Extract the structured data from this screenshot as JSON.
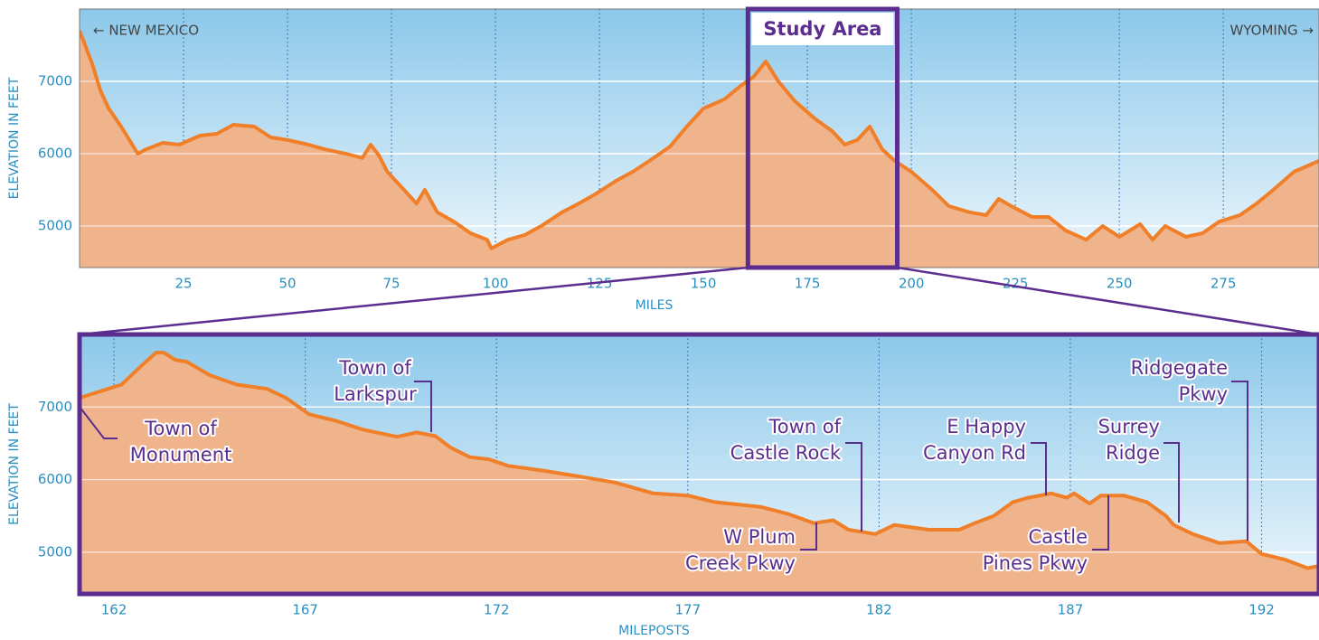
{
  "chart_data": [
    {
      "type": "area",
      "ylabel": "ELEVATION IN FEET",
      "xlabel": "MILES",
      "x": [
        0,
        3,
        5,
        7,
        10,
        14,
        16,
        20,
        24,
        29,
        33,
        37,
        42,
        46,
        50,
        55,
        59,
        64,
        68,
        70,
        72,
        74,
        78,
        81,
        83,
        86,
        90,
        94,
        98,
        99,
        103,
        107,
        111,
        116,
        120,
        124,
        129,
        133,
        137,
        142,
        146,
        150,
        155,
        159,
        162,
        165,
        168,
        172,
        177,
        181,
        184,
        187,
        190,
        193,
        196,
        200,
        205,
        209,
        214,
        218,
        221,
        224,
        229,
        233,
        237,
        242,
        246,
        250,
        255,
        258,
        261,
        266,
        270,
        274,
        279,
        283,
        287,
        292,
        296,
        298
      ],
      "values": [
        7700,
        7250,
        6875,
        6625,
        6375,
        6000,
        6060,
        6150,
        6125,
        6250,
        6275,
        6400,
        6375,
        6225,
        6190,
        6125,
        6060,
        6000,
        5940,
        6125,
        5975,
        5750,
        5500,
        5310,
        5500,
        5190,
        5060,
        4900,
        4810,
        4690,
        4810,
        4875,
        5000,
        5190,
        5310,
        5440,
        5625,
        5750,
        5900,
        6100,
        6375,
        6625,
        6750,
        6940,
        7060,
        7275,
        7000,
        6725,
        6475,
        6310,
        6125,
        6190,
        6375,
        6060,
        5900,
        5750,
        5500,
        5275,
        5190,
        5150,
        5375,
        5275,
        5125,
        5125,
        4940,
        4810,
        5000,
        4850,
        5025,
        4810,
        5000,
        4850,
        4900,
        5060,
        5150,
        5310,
        5500,
        5750,
        5850,
        5900
      ],
      "color": "#f07f2a",
      "fill_color": "#f0b48c",
      "xlim": [
        0,
        298
      ],
      "ylim": [
        4425,
        8000
      ],
      "xticks": [
        25,
        50,
        75,
        100,
        125,
        150,
        175,
        200,
        225,
        250,
        275
      ],
      "yticks": [
        5000,
        6000,
        7000
      ],
      "grid": true,
      "annotations": [
        "← NEW MEXICO",
        "WYOMING →"
      ],
      "highlight": {
        "label": "Study Area",
        "range": [
          160.7,
          196.6
        ],
        "color": "#5b2d8e"
      }
    },
    {
      "type": "area",
      "ylabel": "ELEVATION IN FEET",
      "xlabel": "MILEPOSTS",
      "x": [
        161.1,
        162.2,
        162.7,
        163.1,
        163.3,
        163.6,
        163.9,
        164.5,
        165.2,
        166,
        166.5,
        167.1,
        167.8,
        168.5,
        169.4,
        169.9,
        170.4,
        170.8,
        171.3,
        171.8,
        172.3,
        173.2,
        174.2,
        175.1,
        176.1,
        177,
        177.7,
        178.9,
        179.6,
        180.3,
        180.8,
        181.2,
        181.9,
        182.4,
        183.3,
        184.1,
        184.5,
        185,
        185.5,
        185.9,
        186.5,
        186.9,
        187.1,
        187.5,
        187.8,
        188.4,
        189,
        189.5,
        189.7,
        190.2,
        190.9,
        191.6,
        192,
        192.6,
        193.2,
        193.5
      ],
      "values": [
        7125,
        7310,
        7560,
        7750,
        7750,
        7650,
        7625,
        7440,
        7310,
        7250,
        7125,
        6900,
        6810,
        6690,
        6590,
        6650,
        6600,
        6440,
        6310,
        6280,
        6190,
        6125,
        6040,
        5960,
        5810,
        5780,
        5690,
        5625,
        5530,
        5400,
        5440,
        5310,
        5250,
        5375,
        5310,
        5310,
        5400,
        5500,
        5690,
        5750,
        5810,
        5750,
        5810,
        5670,
        5780,
        5780,
        5690,
        5500,
        5375,
        5250,
        5125,
        5150,
        4975,
        4900,
        4780,
        4810
      ],
      "color": "#f07f2a",
      "fill_color": "#f0b48c",
      "xlim": [
        161.1,
        193.5
      ],
      "ylim": [
        4425,
        8000
      ],
      "xticks": [
        162,
        167,
        172,
        177,
        182,
        187,
        192
      ],
      "yticks": [
        5000,
        6000,
        7000
      ],
      "grid": true,
      "frame_color": "#5b2d8e",
      "callouts": [
        [
          "Town of",
          "Monument"
        ],
        [
          "Town of",
          "Larkspur"
        ],
        [
          "Town of",
          "Castle Rock"
        ],
        [
          "W Plum",
          "Creek Pkwy"
        ],
        [
          "E Happy",
          "Canyon Rd"
        ],
        [
          "Castle",
          "Pines Pkwy"
        ],
        [
          "Surrey",
          "Ridge"
        ],
        [
          "Ridgegate",
          "Pkwy"
        ]
      ]
    }
  ]
}
